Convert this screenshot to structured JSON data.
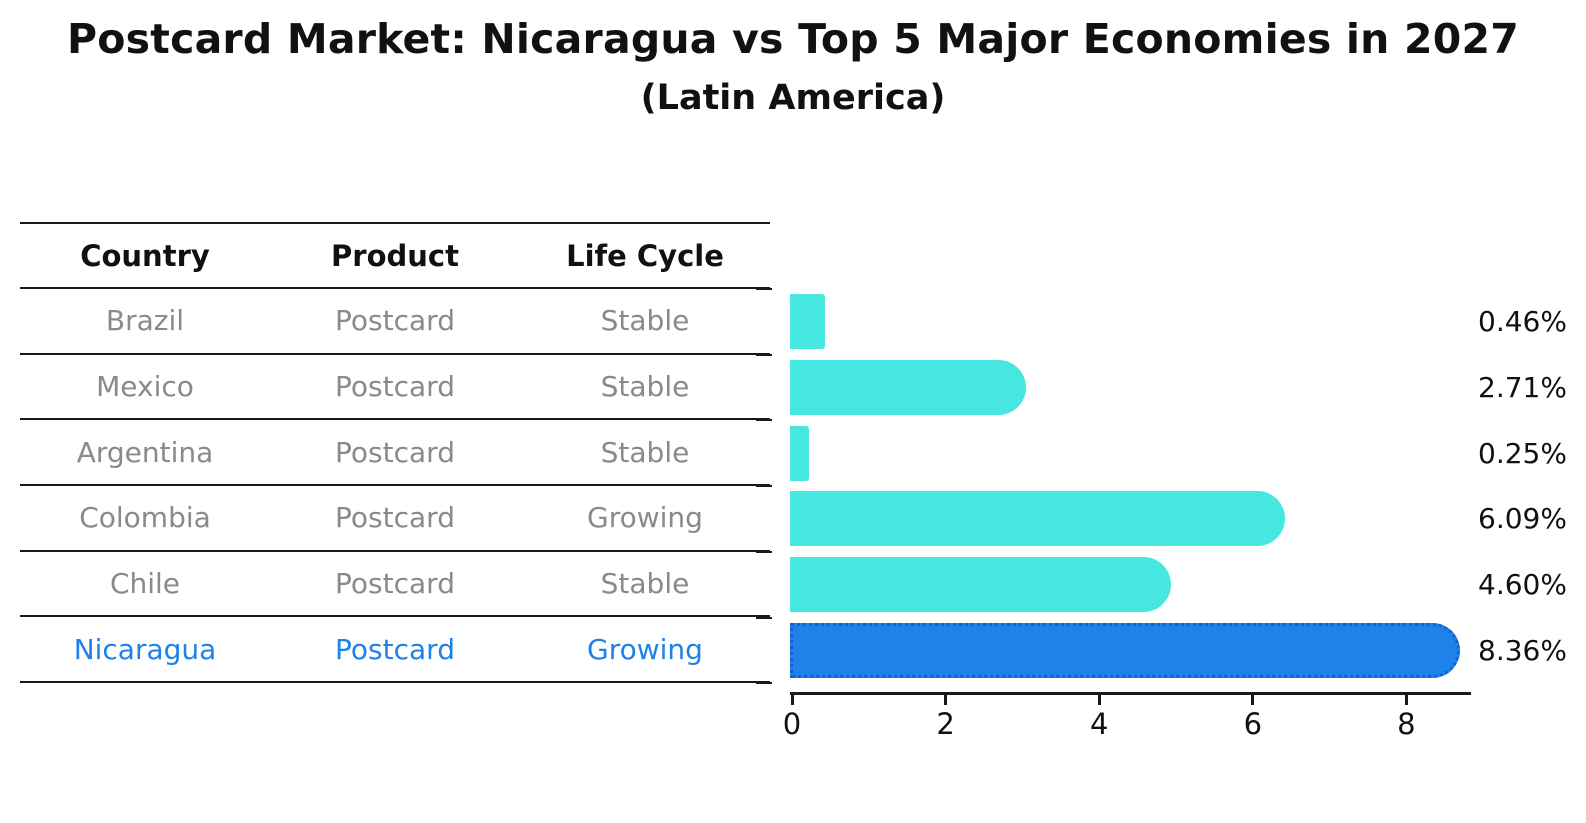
{
  "title": "Postcard Market: Nicaragua vs Top 5 Major Economies in 2027",
  "subtitle": "(Latin America)",
  "table": {
    "headers": [
      "Country",
      "Product",
      "Life Cycle"
    ]
  },
  "chart_data": {
    "type": "bar",
    "orientation": "horizontal",
    "value_unit": "%",
    "x_axis": {
      "ticks": [
        0,
        2,
        4,
        6,
        8
      ],
      "range": [
        0,
        8.86
      ]
    },
    "grid": false,
    "legend": false,
    "rows": [
      {
        "country": "Brazil",
        "product": "Postcard",
        "life_cycle": "Stable",
        "value": 0.46,
        "label": "0.46%",
        "highlight": false
      },
      {
        "country": "Mexico",
        "product": "Postcard",
        "life_cycle": "Stable",
        "value": 2.71,
        "label": "2.71%",
        "highlight": false
      },
      {
        "country": "Argentina",
        "product": "Postcard",
        "life_cycle": "Stable",
        "value": 0.25,
        "label": "0.25%",
        "highlight": false
      },
      {
        "country": "Colombia",
        "product": "Postcard",
        "life_cycle": "Growing",
        "value": 6.09,
        "label": "6.09%",
        "highlight": false
      },
      {
        "country": "Chile",
        "product": "Postcard",
        "life_cycle": "Stable",
        "value": 4.6,
        "label": "4.60%",
        "highlight": false
      },
      {
        "country": "Nicaragua",
        "product": "Postcard",
        "life_cycle": "Growing",
        "value": 8.36,
        "label": "8.36%",
        "highlight": true
      }
    ],
    "colors": {
      "bar": "#45E7E0",
      "highlight_bar": "#1E82E8",
      "highlight_border": "#1263CB",
      "highlight_text": "#1E82E8",
      "row_text": "#8a8a8a",
      "header_text": "#111111",
      "axis": "#1a1a1a"
    }
  }
}
